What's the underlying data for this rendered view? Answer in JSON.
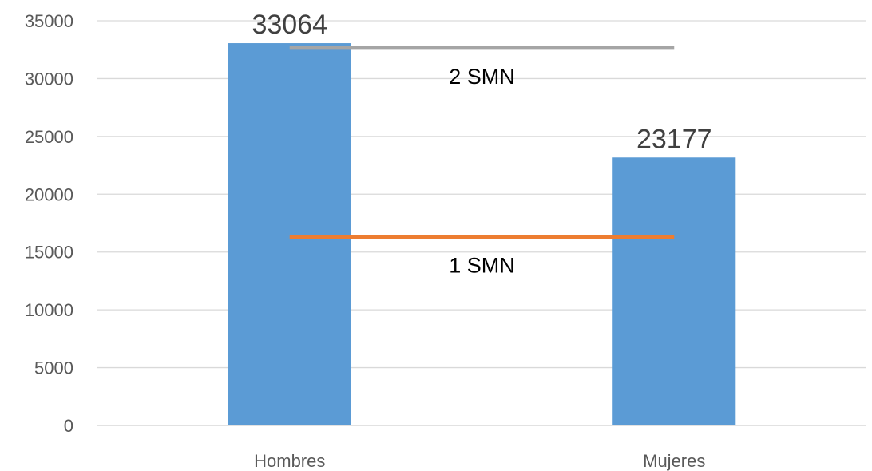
{
  "chart_data": {
    "type": "bar",
    "categories": [
      "Hombres",
      "Mujeres"
    ],
    "values": [
      33064,
      23177
    ],
    "data_labels": [
      "33064",
      "23177"
    ],
    "ylim": [
      0,
      35000
    ],
    "yticks": [
      0,
      5000,
      10000,
      15000,
      20000,
      25000,
      30000,
      35000
    ],
    "ytick_labels": [
      "0",
      "5000",
      "10000",
      "15000",
      "20000",
      "25000",
      "30000",
      "35000"
    ],
    "grid": true,
    "legend": "none",
    "title": "",
    "xlabel": "",
    "ylabel": "",
    "bar_color": "#5b9bd5",
    "reference_lines": [
      {
        "label": "2 SMN",
        "value": 32660,
        "color": "#a5a5a5"
      },
      {
        "label": "1 SMN",
        "value": 16330,
        "color": "#ed7d31"
      }
    ]
  }
}
